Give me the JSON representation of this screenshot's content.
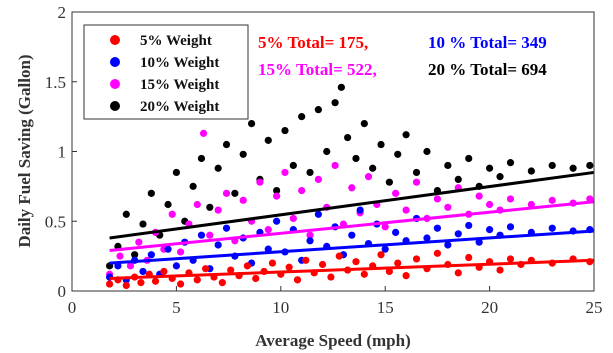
{
  "chart_data": {
    "type": "scatter",
    "xlabel": "Average Speed (mph)",
    "ylabel": "Daily Fuel Saving (Gallon)",
    "xlim": [
      0,
      25
    ],
    "ylim": [
      0,
      2
    ],
    "xticks": [
      "0",
      "5",
      "10",
      "15",
      "20",
      "25"
    ],
    "yticks": [
      "0",
      "0.5",
      "1",
      "1.5",
      "2"
    ],
    "grid": false,
    "legend_placement": "top-left",
    "series": [
      {
        "name": "5% Weight",
        "color": "#ff0000",
        "trend": [
          [
            1.8,
            0.09
          ],
          [
            25,
            0.22
          ]
        ],
        "points": [
          [
            1.8,
            0.05
          ],
          [
            2.2,
            0.08
          ],
          [
            2.6,
            0.04
          ],
          [
            3.0,
            0.1
          ],
          [
            3.3,
            0.06
          ],
          [
            3.7,
            0.12
          ],
          [
            4.0,
            0.07
          ],
          [
            4.4,
            0.14
          ],
          [
            4.8,
            0.09
          ],
          [
            5.2,
            0.05
          ],
          [
            5.6,
            0.13
          ],
          [
            6.0,
            0.08
          ],
          [
            6.4,
            0.16
          ],
          [
            6.8,
            0.1
          ],
          [
            7.2,
            0.06
          ],
          [
            7.6,
            0.15
          ],
          [
            8.0,
            0.11
          ],
          [
            8.4,
            0.18
          ],
          [
            8.8,
            0.09
          ],
          [
            9.2,
            0.14
          ],
          [
            9.6,
            0.2
          ],
          [
            10.0,
            0.12
          ],
          [
            10.4,
            0.17
          ],
          [
            10.8,
            0.08
          ],
          [
            11.2,
            0.22
          ],
          [
            11.6,
            0.13
          ],
          [
            12.0,
            0.19
          ],
          [
            12.4,
            0.1
          ],
          [
            12.8,
            0.25
          ],
          [
            13.2,
            0.15
          ],
          [
            13.6,
            0.21
          ],
          [
            14.0,
            0.12
          ],
          [
            14.4,
            0.18
          ],
          [
            14.8,
            0.26
          ],
          [
            15.2,
            0.14
          ],
          [
            15.6,
            0.2
          ],
          [
            16.0,
            0.11
          ],
          [
            16.5,
            0.23
          ],
          [
            17.0,
            0.16
          ],
          [
            17.5,
            0.27
          ],
          [
            18.0,
            0.19
          ],
          [
            18.5,
            0.13
          ],
          [
            19.0,
            0.24
          ],
          [
            19.5,
            0.17
          ],
          [
            20.0,
            0.21
          ],
          [
            20.5,
            0.15
          ],
          [
            21.0,
            0.23
          ],
          [
            21.5,
            0.19
          ],
          [
            22.0,
            0.22
          ],
          [
            23.0,
            0.2
          ],
          [
            24.0,
            0.23
          ],
          [
            24.8,
            0.21
          ]
        ]
      },
      {
        "name": "10% Weight",
        "color": "#0000ff",
        "trend": [
          [
            1.8,
            0.2
          ],
          [
            25,
            0.43
          ]
        ],
        "points": [
          [
            1.8,
            0.1
          ],
          [
            2.2,
            0.18
          ],
          [
            2.6,
            0.08
          ],
          [
            3.0,
            0.22
          ],
          [
            3.4,
            0.14
          ],
          [
            3.8,
            0.26
          ],
          [
            4.2,
            0.12
          ],
          [
            4.6,
            0.3
          ],
          [
            5.0,
            0.18
          ],
          [
            5.4,
            0.35
          ],
          [
            5.8,
            0.22
          ],
          [
            6.2,
            0.4
          ],
          [
            6.6,
            0.16
          ],
          [
            7.0,
            0.33
          ],
          [
            7.4,
            0.45
          ],
          [
            7.8,
            0.25
          ],
          [
            8.2,
            0.38
          ],
          [
            8.6,
            0.2
          ],
          [
            9.0,
            0.42
          ],
          [
            9.4,
            0.3
          ],
          [
            9.8,
            0.5
          ],
          [
            10.2,
            0.28
          ],
          [
            10.6,
            0.44
          ],
          [
            11.0,
            0.22
          ],
          [
            11.4,
            0.36
          ],
          [
            11.8,
            0.55
          ],
          [
            12.2,
            0.32
          ],
          [
            12.6,
            0.46
          ],
          [
            13.0,
            0.26
          ],
          [
            13.4,
            0.4
          ],
          [
            13.8,
            0.58
          ],
          [
            14.2,
            0.34
          ],
          [
            14.6,
            0.48
          ],
          [
            15.0,
            0.3
          ],
          [
            15.5,
            0.42
          ],
          [
            16.0,
            0.36
          ],
          [
            16.5,
            0.52
          ],
          [
            17.0,
            0.38
          ],
          [
            17.5,
            0.45
          ],
          [
            18.0,
            0.33
          ],
          [
            18.5,
            0.41
          ],
          [
            19.0,
            0.47
          ],
          [
            19.5,
            0.35
          ],
          [
            20.0,
            0.44
          ],
          [
            20.5,
            0.4
          ],
          [
            21.0,
            0.46
          ],
          [
            22.0,
            0.42
          ],
          [
            23.0,
            0.45
          ],
          [
            24.0,
            0.43
          ],
          [
            24.8,
            0.44
          ]
        ]
      },
      {
        "name": "15% Weight",
        "color": "#ff00ff",
        "trend": [
          [
            1.8,
            0.29
          ],
          [
            25,
            0.64
          ]
        ],
        "points": [
          [
            1.8,
            0.12
          ],
          [
            2.3,
            0.25
          ],
          [
            2.8,
            0.18
          ],
          [
            3.2,
            0.35
          ],
          [
            3.6,
            0.22
          ],
          [
            4.0,
            0.42
          ],
          [
            4.4,
            0.3
          ],
          [
            4.8,
            0.55
          ],
          [
            5.2,
            0.28
          ],
          [
            5.6,
            0.48
          ],
          [
            6.0,
            0.62
          ],
          [
            6.3,
            1.13
          ],
          [
            6.6,
            0.4
          ],
          [
            7.0,
            0.58
          ],
          [
            7.4,
            0.7
          ],
          [
            7.8,
            0.36
          ],
          [
            8.2,
            0.65
          ],
          [
            8.6,
            0.5
          ],
          [
            9.0,
            0.78
          ],
          [
            9.4,
            0.44
          ],
          [
            9.8,
            0.68
          ],
          [
            10.2,
            0.85
          ],
          [
            10.6,
            0.52
          ],
          [
            11.0,
            0.72
          ],
          [
            11.4,
            0.4
          ],
          [
            11.8,
            0.8
          ],
          [
            12.2,
            0.6
          ],
          [
            12.6,
            0.9
          ],
          [
            13.0,
            0.48
          ],
          [
            13.4,
            0.74
          ],
          [
            13.8,
            0.56
          ],
          [
            14.2,
            0.82
          ],
          [
            14.6,
            0.62
          ],
          [
            15.0,
            0.46
          ],
          [
            15.5,
            0.7
          ],
          [
            16.0,
            0.58
          ],
          [
            16.5,
            0.78
          ],
          [
            17.0,
            0.52
          ],
          [
            17.5,
            0.66
          ],
          [
            18.0,
            0.6
          ],
          [
            18.5,
            0.74
          ],
          [
            19.0,
            0.55
          ],
          [
            19.5,
            0.68
          ],
          [
            20.0,
            0.62
          ],
          [
            20.5,
            0.58
          ],
          [
            21.0,
            0.66
          ],
          [
            22.0,
            0.62
          ],
          [
            23.0,
            0.65
          ],
          [
            24.0,
            0.63
          ],
          [
            24.8,
            0.66
          ]
        ]
      },
      {
        "name": "20% Weight",
        "color": "#000000",
        "trend": [
          [
            1.8,
            0.38
          ],
          [
            25,
            0.85
          ]
        ],
        "points": [
          [
            1.8,
            0.18
          ],
          [
            2.2,
            0.32
          ],
          [
            2.6,
            0.55
          ],
          [
            3.0,
            0.26
          ],
          [
            3.4,
            0.48
          ],
          [
            3.8,
            0.7
          ],
          [
            4.2,
            0.4
          ],
          [
            4.6,
            0.62
          ],
          [
            5.0,
            0.85
          ],
          [
            5.4,
            0.5
          ],
          [
            5.8,
            0.75
          ],
          [
            6.2,
            0.95
          ],
          [
            6.6,
            0.6
          ],
          [
            7.0,
            0.88
          ],
          [
            7.4,
            1.05
          ],
          [
            7.8,
            0.7
          ],
          [
            8.2,
            0.98
          ],
          [
            8.6,
            1.2
          ],
          [
            9.0,
            0.8
          ],
          [
            9.4,
            1.08
          ],
          [
            9.8,
            0.72
          ],
          [
            10.2,
            1.15
          ],
          [
            10.6,
            0.9
          ],
          [
            11.0,
            1.25
          ],
          [
            11.4,
            0.85
          ],
          [
            11.8,
            1.3
          ],
          [
            12.2,
            1.0
          ],
          [
            12.6,
            1.35
          ],
          [
            12.9,
            1.46
          ],
          [
            13.2,
            1.1
          ],
          [
            13.6,
            0.95
          ],
          [
            14.0,
            1.2
          ],
          [
            14.4,
            0.88
          ],
          [
            14.8,
            1.05
          ],
          [
            15.2,
            0.78
          ],
          [
            15.6,
            0.98
          ],
          [
            16.0,
            1.12
          ],
          [
            16.5,
            0.85
          ],
          [
            17.0,
            1.0
          ],
          [
            17.5,
            0.72
          ],
          [
            18.0,
            0.9
          ],
          [
            18.5,
            0.8
          ],
          [
            19.0,
            0.95
          ],
          [
            19.5,
            0.75
          ],
          [
            20.0,
            0.88
          ],
          [
            20.5,
            0.82
          ],
          [
            21.0,
            0.92
          ],
          [
            22.0,
            0.86
          ],
          [
            23.0,
            0.9
          ],
          [
            24.0,
            0.88
          ],
          [
            24.8,
            0.9
          ]
        ]
      }
    ],
    "annotations": [
      {
        "text": "5% Total=  175,",
        "color": "#ff0000"
      },
      {
        "text": "10 % Total=  349",
        "color": "#0000ff"
      },
      {
        "text": "15% Total=  522,",
        "color": "#ff00ff"
      },
      {
        "text": "20 % Total=  694",
        "color": "#000000"
      }
    ]
  }
}
